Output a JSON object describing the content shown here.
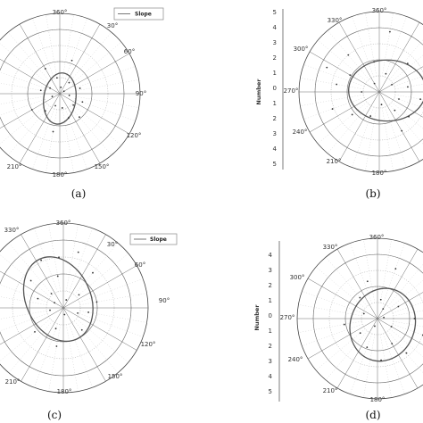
{
  "chart_data": [
    {
      "type": "scatter",
      "projection": "polar",
      "caption": "(a)",
      "legend": {
        "entries": [
          "Slope"
        ],
        "placement": "top-right"
      },
      "angle_labels": [
        "360°",
        "30°",
        "60°",
        "90°",
        "120°",
        "150°",
        "180°",
        "210°"
      ],
      "radial_ticks": [],
      "rlim": [
        0,
        5
      ],
      "grid": true,
      "series": [
        {
          "name": "Slope",
          "kind": "line",
          "ellipse": {
            "center_r": 0.3,
            "center_deg": 180,
            "a": 1.0,
            "b": 1.6,
            "tilt_deg": 8
          }
        },
        {
          "kind": "points",
          "values": [
            [
              0.4,
              10
            ],
            [
              0.9,
              40
            ],
            [
              1.3,
              75
            ],
            [
              0.6,
              100
            ],
            [
              1.1,
              130
            ],
            [
              1.6,
              160
            ],
            [
              0.8,
              200
            ],
            [
              1.4,
              220
            ],
            [
              0.5,
              250
            ],
            [
              1.2,
              280
            ],
            [
              0.7,
              300
            ],
            [
              1.8,
              330
            ],
            [
              1.0,
              350
            ],
            [
              2.2,
              20
            ],
            [
              1.9,
              140
            ],
            [
              2.4,
              190
            ],
            [
              0.3,
              60
            ],
            [
              1.5,
              110
            ],
            [
              2.0,
              240
            ],
            [
              0.9,
              170
            ]
          ]
        }
      ]
    },
    {
      "type": "scatter",
      "projection": "polar",
      "caption": "(b)",
      "ylabel": "Number",
      "angle_labels": [
        "360°",
        "330°",
        "300°",
        "270°",
        "240°",
        "210°",
        "180°"
      ],
      "radial_ticks": [
        "5",
        "4",
        "3",
        "2",
        "1",
        "0",
        "1",
        "2",
        "3",
        "4",
        "5"
      ],
      "rlim": [
        0,
        5
      ],
      "grid": true,
      "series": [
        {
          "kind": "line",
          "ellipse": {
            "center_r": 0.5,
            "center_deg": 80,
            "a": 2.4,
            "b": 1.9,
            "tilt_deg": 0
          }
        },
        {
          "kind": "points",
          "values": [
            [
              2.1,
              300
            ],
            [
              3.0,
              320
            ],
            [
              3.6,
              295
            ],
            [
              1.2,
              20
            ],
            [
              2.5,
              45
            ],
            [
              3.2,
              60
            ],
            [
              1.8,
              80
            ],
            [
              2.6,
              100
            ],
            [
              3.4,
              120
            ],
            [
              1.5,
              140
            ],
            [
              2.8,
              150
            ],
            [
              0.8,
              170
            ],
            [
              1.6,
              200
            ],
            [
              2.2,
              230
            ],
            [
              3.1,
              250
            ],
            [
              1.1,
              270
            ],
            [
              2.7,
              280
            ],
            [
              0.6,
              330
            ],
            [
              1.9,
              350
            ],
            [
              3.8,
              10
            ],
            [
              2.4,
              130
            ],
            [
              1.3,
              110
            ],
            [
              3.5,
              85
            ],
            [
              0.9,
              60
            ]
          ]
        }
      ]
    },
    {
      "type": "scatter",
      "projection": "polar",
      "caption": "(c)",
      "legend": {
        "entries": [
          "Slope"
        ],
        "placement": "top-right"
      },
      "angle_labels": [
        "360°",
        "30°",
        "60°",
        "90°",
        "120°",
        "150°",
        "180°",
        "210°",
        "330°"
      ],
      "radial_ticks": [],
      "rlim": [
        0,
        5
      ],
      "grid": true,
      "series": [
        {
          "name": "Slope",
          "kind": "line",
          "ellipse": {
            "center_r": 0.6,
            "center_deg": 330,
            "a": 1.9,
            "b": 2.6,
            "tilt_deg": -25
          }
        },
        {
          "kind": "points",
          "values": [
            [
              0.5,
              20
            ],
            [
              1.2,
              50
            ],
            [
              2.0,
              80
            ],
            [
              0.9,
              110
            ],
            [
              1.7,
              140
            ],
            [
              0.4,
              170
            ],
            [
              1.3,
              200
            ],
            [
              2.2,
              230
            ],
            [
              0.8,
              260
            ],
            [
              1.6,
              290
            ],
            [
              2.5,
              310
            ],
            [
              3.1,
              335
            ],
            [
              1.9,
              350
            ],
            [
              3.4,
              15
            ],
            [
              2.7,
              40
            ],
            [
              1.1,
              320
            ],
            [
              0.6,
              300
            ],
            [
              2.3,
              190
            ],
            [
              1.5,
              100
            ],
            [
              3.0,
              355
            ]
          ]
        }
      ]
    },
    {
      "type": "scatter",
      "projection": "polar",
      "caption": "(d)",
      "ylabel": "Number",
      "angle_labels": [
        "360°",
        "330°",
        "300°",
        "270°",
        "240°",
        "210°",
        "180°"
      ],
      "radial_ticks": [
        "4",
        "3",
        "2",
        "1",
        "0",
        "1",
        "2",
        "3",
        "4",
        "5"
      ],
      "rlim": [
        0,
        5
      ],
      "grid": true,
      "series": [
        {
          "kind": "line",
          "ellipse": {
            "center_r": 0.5,
            "center_deg": 140,
            "a": 2.0,
            "b": 2.3,
            "tilt_deg": 20
          }
        },
        {
          "kind": "points",
          "values": [
            [
              0.7,
              30
            ],
            [
              1.5,
              60
            ],
            [
              2.3,
              90
            ],
            [
              1.0,
              120
            ],
            [
              1.8,
              150
            ],
            [
              2.6,
              175
            ],
            [
              0.5,
              200
            ],
            [
              1.4,
              230
            ],
            [
              2.1,
              260
            ],
            [
              0.9,
              290
            ],
            [
              1.7,
              320
            ],
            [
              2.4,
              345
            ],
            [
              1.2,
              10
            ],
            [
              3.0,
              110
            ],
            [
              2.8,
              140
            ],
            [
              0.4,
              80
            ],
            [
              1.9,
              200
            ],
            [
              3.3,
              20
            ]
          ]
        }
      ]
    }
  ]
}
